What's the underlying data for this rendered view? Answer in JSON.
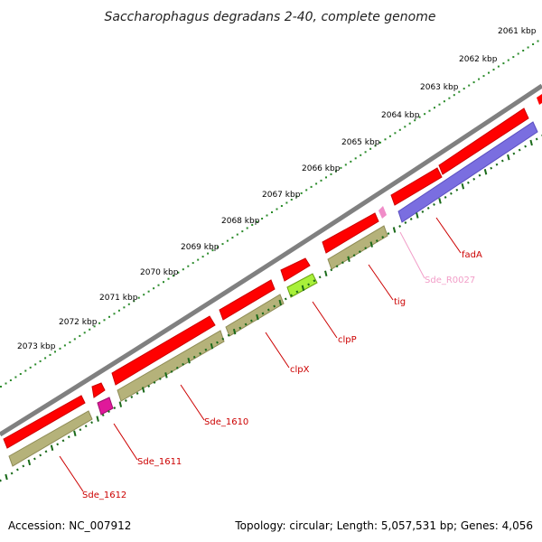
{
  "title": "Saccharophagus degradans 2-40, complete genome",
  "footer": {
    "accession": "Accession: NC_007912",
    "topology": "Topology: circular; Length: 5,057,531 bp; Genes: 4,056"
  },
  "scale_labels": [
    "2061 kbp",
    "2062 kbp",
    "2063 kbp",
    "2064 kbp",
    "2065 kbp",
    "2066 kbp",
    "2067 kbp",
    "2068 kbp",
    "2069 kbp",
    "2070 kbp",
    "2071 kbp",
    "2072 kbp",
    "2073 kbp"
  ],
  "gene_labels": [
    {
      "name": "fadA",
      "color": "#cc0000"
    },
    {
      "name": "Sde_R0027",
      "color": "#f29ec8"
    },
    {
      "name": "tig",
      "color": "#cc0000"
    },
    {
      "name": "clpP",
      "color": "#cc0000"
    },
    {
      "name": "clpX",
      "color": "#cc0000"
    },
    {
      "name": "Sde_1610",
      "color": "#cc0000"
    },
    {
      "name": "Sde_1611",
      "color": "#cc0000"
    },
    {
      "name": "Sde_1612",
      "color": "#cc0000"
    }
  ],
  "colors": {
    "backbone": "#808080",
    "cds": "#ff0000",
    "cds_dark": "#b30000",
    "gene_olive": "#b5b27a",
    "gene_blue": "#7a6ee0",
    "trna_pink": "#f08cc8",
    "magenta": "#e0199a",
    "lime": "#a8f03a",
    "scale_dot": "#2a8a2a",
    "gc_tick": "#1a6a1a"
  }
}
